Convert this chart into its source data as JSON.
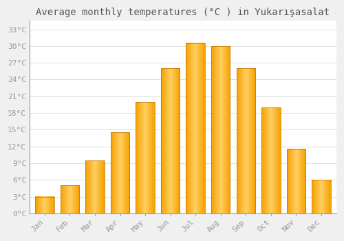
{
  "title": "Average monthly temperatures (°C ) in Yukarışasalat",
  "months": [
    "Jan",
    "Feb",
    "Mar",
    "Apr",
    "May",
    "Jun",
    "Jul",
    "Aug",
    "Sep",
    "Oct",
    "Nov",
    "Dec"
  ],
  "values": [
    3,
    5,
    9.5,
    14.5,
    20,
    26,
    30.5,
    30,
    26,
    19,
    11.5,
    6
  ],
  "bar_color_left": "#F5A000",
  "bar_color_center": "#FFD060",
  "bar_color_right": "#F5A000",
  "background_color": "#F0F0F0",
  "plot_bg_color": "#FFFFFF",
  "yticks": [
    0,
    3,
    6,
    9,
    12,
    15,
    18,
    21,
    24,
    27,
    30,
    33
  ],
  "ytick_labels": [
    "0°C",
    "3°C",
    "6°C",
    "9°C",
    "12°C",
    "15°C",
    "18°C",
    "21°C",
    "24°C",
    "27°C",
    "30°C",
    "33°C"
  ],
  "ylim": [
    0,
    34.5
  ],
  "title_fontsize": 10,
  "tick_fontsize": 8,
  "grid_color": "#E0E0E0",
  "tick_color": "#999999",
  "spine_color": "#999999"
}
